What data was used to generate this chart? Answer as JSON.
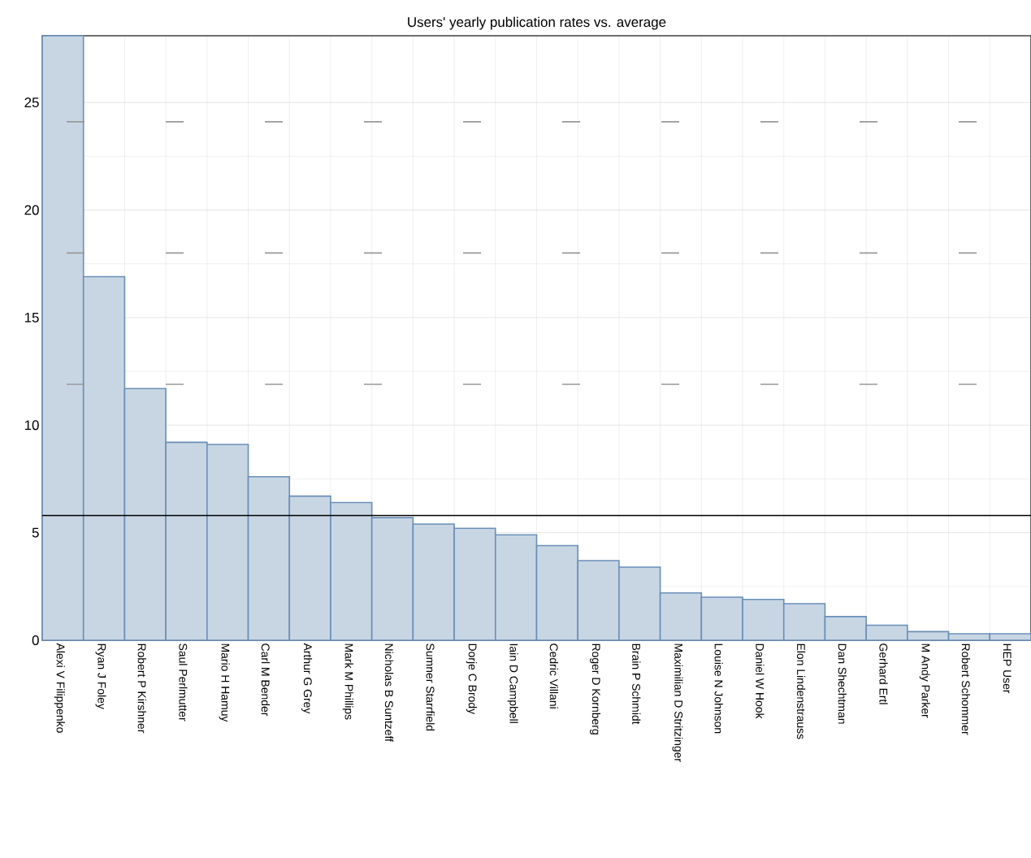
{
  "chart_data": {
    "type": "bar",
    "title": "Users' yearly publication rates vs. average",
    "categories": [
      "Alexi V Filippenko",
      "Ryan J Foley",
      "Robert P Kirshner",
      "Saul Perlmutter",
      "Mario H Hamuy",
      "Carl M Bender",
      "Arthur G Grey",
      "Mark M Phillips",
      "Nicholas B Suntzeff",
      "Sumner Starrfield",
      "Dorje C Brody",
      "Iain D Campbell",
      "Cedric Villani",
      "Roger D Kornberg",
      "Brain P Schmidt",
      "Maximilian D Stritzinger",
      "Louise N Johnson",
      "Daniel W Hook",
      "Elon Lindenstrauss",
      "Dan Shechtman",
      "Gerhard Ertl",
      "M Andy Parker",
      "Robert Schommer",
      "HEP User"
    ],
    "values": [
      28.1,
      16.9,
      11.7,
      9.2,
      9.1,
      7.6,
      6.7,
      6.4,
      5.7,
      5.4,
      5.2,
      4.9,
      4.4,
      3.7,
      3.4,
      2.2,
      2.0,
      1.9,
      1.7,
      1.1,
      0.7,
      0.4,
      0.3,
      0.3
    ],
    "color": "#c8d6e4",
    "ylim": [
      0,
      28.1
    ],
    "yticks": [
      0,
      5,
      10,
      15,
      20,
      25
    ],
    "grid": true,
    "ref_lines": [
      {
        "axis": "y",
        "value": 5.8,
        "color": "#000000",
        "line_style": "solid"
      },
      {
        "axis": "y",
        "value": 11.9,
        "color": "#999999",
        "line_style": "dashed"
      },
      {
        "axis": "y",
        "value": 18.0,
        "color": "#999999",
        "line_style": "dashed"
      },
      {
        "axis": "y",
        "value": 24.1,
        "color": "#999999",
        "line_style": "dashed"
      }
    ]
  }
}
